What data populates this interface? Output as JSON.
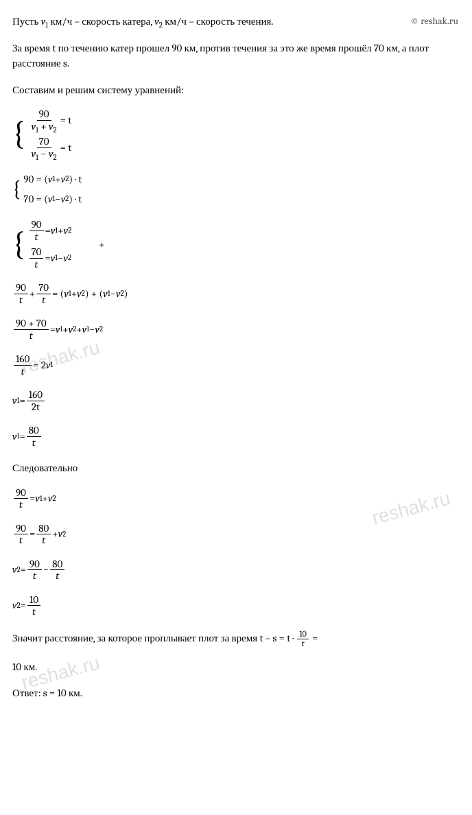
{
  "copyright": "© reshak.ru",
  "watermark": "reshak.ru",
  "line1_p1": "Пусть ",
  "line1_v1": "v",
  "line1_sub1": "1",
  "line1_p2": " км/ч  – скорость катера, ",
  "line1_v2": "v",
  "line1_sub2": "2",
  "line1_p3": " км/ч  – скорость течения.",
  "para2": "За время t по течению катер прошел 90 км, против течения за это же время прошёл 70 км, а плот расстояние s.",
  "para3": "Составим и решим систему уравнений:",
  "eq1_num": "90",
  "eq1_den_v": "v",
  "eq1_den_s1": "1",
  "eq1_den_plus": " + ",
  "eq1_den_v2": "v",
  "eq1_den_s2": "2",
  "eq1_rhs": " = t",
  "eq2_num": "70",
  "eq2_den_v": "v",
  "eq2_den_s1": "1",
  "eq2_den_minus": " − ",
  "eq2_den_v2": "v",
  "eq2_den_s2": "2",
  "eq2_rhs": " = t",
  "eq3_l": "90 = (",
  "eq3_v1": "v",
  "eq3_s1": "1",
  "eq3_mid": " + ",
  "eq3_v2": "v",
  "eq3_s2": "2",
  "eq3_r": ") · t",
  "eq4_l": "70 = (",
  "eq4_v1": "v",
  "eq4_s1": "1",
  "eq4_mid": " − ",
  "eq4_v2": "v",
  "eq4_s2": "2",
  "eq4_r": ") · t",
  "eq5_num": "90",
  "eq5_den": "t",
  "eq5_eq": " = ",
  "eq5_v1": "v",
  "eq5_s1": "1",
  "eq5_plus": " + ",
  "eq5_v2": "v",
  "eq5_s2": "2",
  "eq6_num": "70",
  "eq6_den": "t",
  "eq6_eq": " = ",
  "eq6_v1": "v",
  "eq6_s1": "1",
  "eq6_minus": " − ",
  "eq6_v2": "v",
  "eq6_s2": "2",
  "plus_symbol": "+",
  "eq7_n1": "90",
  "eq7_d1": "t",
  "eq7_plus": " + ",
  "eq7_n2": "70",
  "eq7_d2": "t",
  "eq7_eq": " = (",
  "eq7_v1": "v",
  "eq7_s1": "1",
  "eq7_p": " + ",
  "eq7_v2": "v",
  "eq7_s2": "2",
  "eq7_m": ") + (",
  "eq7_v3": "v",
  "eq7_s3": "1",
  "eq7_mm": " − ",
  "eq7_v4": "v",
  "eq7_s4": "2",
  "eq7_r": ")",
  "eq8_num": "90 + 70",
  "eq8_den": "t",
  "eq8_eq": " = ",
  "eq8_v1": "v",
  "eq8_s1": "1",
  "eq8_p": " + ",
  "eq8_v2": "v",
  "eq8_s2": "2",
  "eq8_p2": " + ",
  "eq8_v3": "v",
  "eq8_s3": "1",
  "eq8_m": " − ",
  "eq8_v4": "v",
  "eq8_s4": "2",
  "eq9_num": "160",
  "eq9_den": "t",
  "eq9_eq": " = 2",
  "eq9_v": "v",
  "eq9_s": "1",
  "eq10_v": "v",
  "eq10_s": "1",
  "eq10_eq": " = ",
  "eq10_num": "160",
  "eq10_den": "2t",
  "eq11_v": "v",
  "eq11_s": "1",
  "eq11_eq": " = ",
  "eq11_num": "80",
  "eq11_den": "t",
  "para4": "Следовательно",
  "eq12_num": "90",
  "eq12_den": "t",
  "eq12_eq": " = ",
  "eq12_v1": "v",
  "eq12_s1": "1",
  "eq12_p": " + ",
  "eq12_v2": "v",
  "eq12_s2": "2",
  "eq13_n1": "90",
  "eq13_d1": "t",
  "eq13_eq": " = ",
  "eq13_n2": "80",
  "eq13_d2": "t",
  "eq13_p": " + ",
  "eq13_v": "v",
  "eq13_s": "2",
  "eq14_v": "v",
  "eq14_s": "2",
  "eq14_eq": " = ",
  "eq14_n1": "90",
  "eq14_d1": "t",
  "eq14_m": " − ",
  "eq14_n2": "80",
  "eq14_d2": "t",
  "eq15_v": "v",
  "eq15_s": "2",
  "eq15_eq": " = ",
  "eq15_num": "10",
  "eq15_den": "t",
  "para5_p1": "Значит расстояние, за которое проплывает плот за время t – s = t · ",
  "para5_num": "10",
  "para5_den": "t",
  "para5_p2": " =",
  "para5_p3": "10 км.",
  "answer": "Ответ:  s = 10 км."
}
